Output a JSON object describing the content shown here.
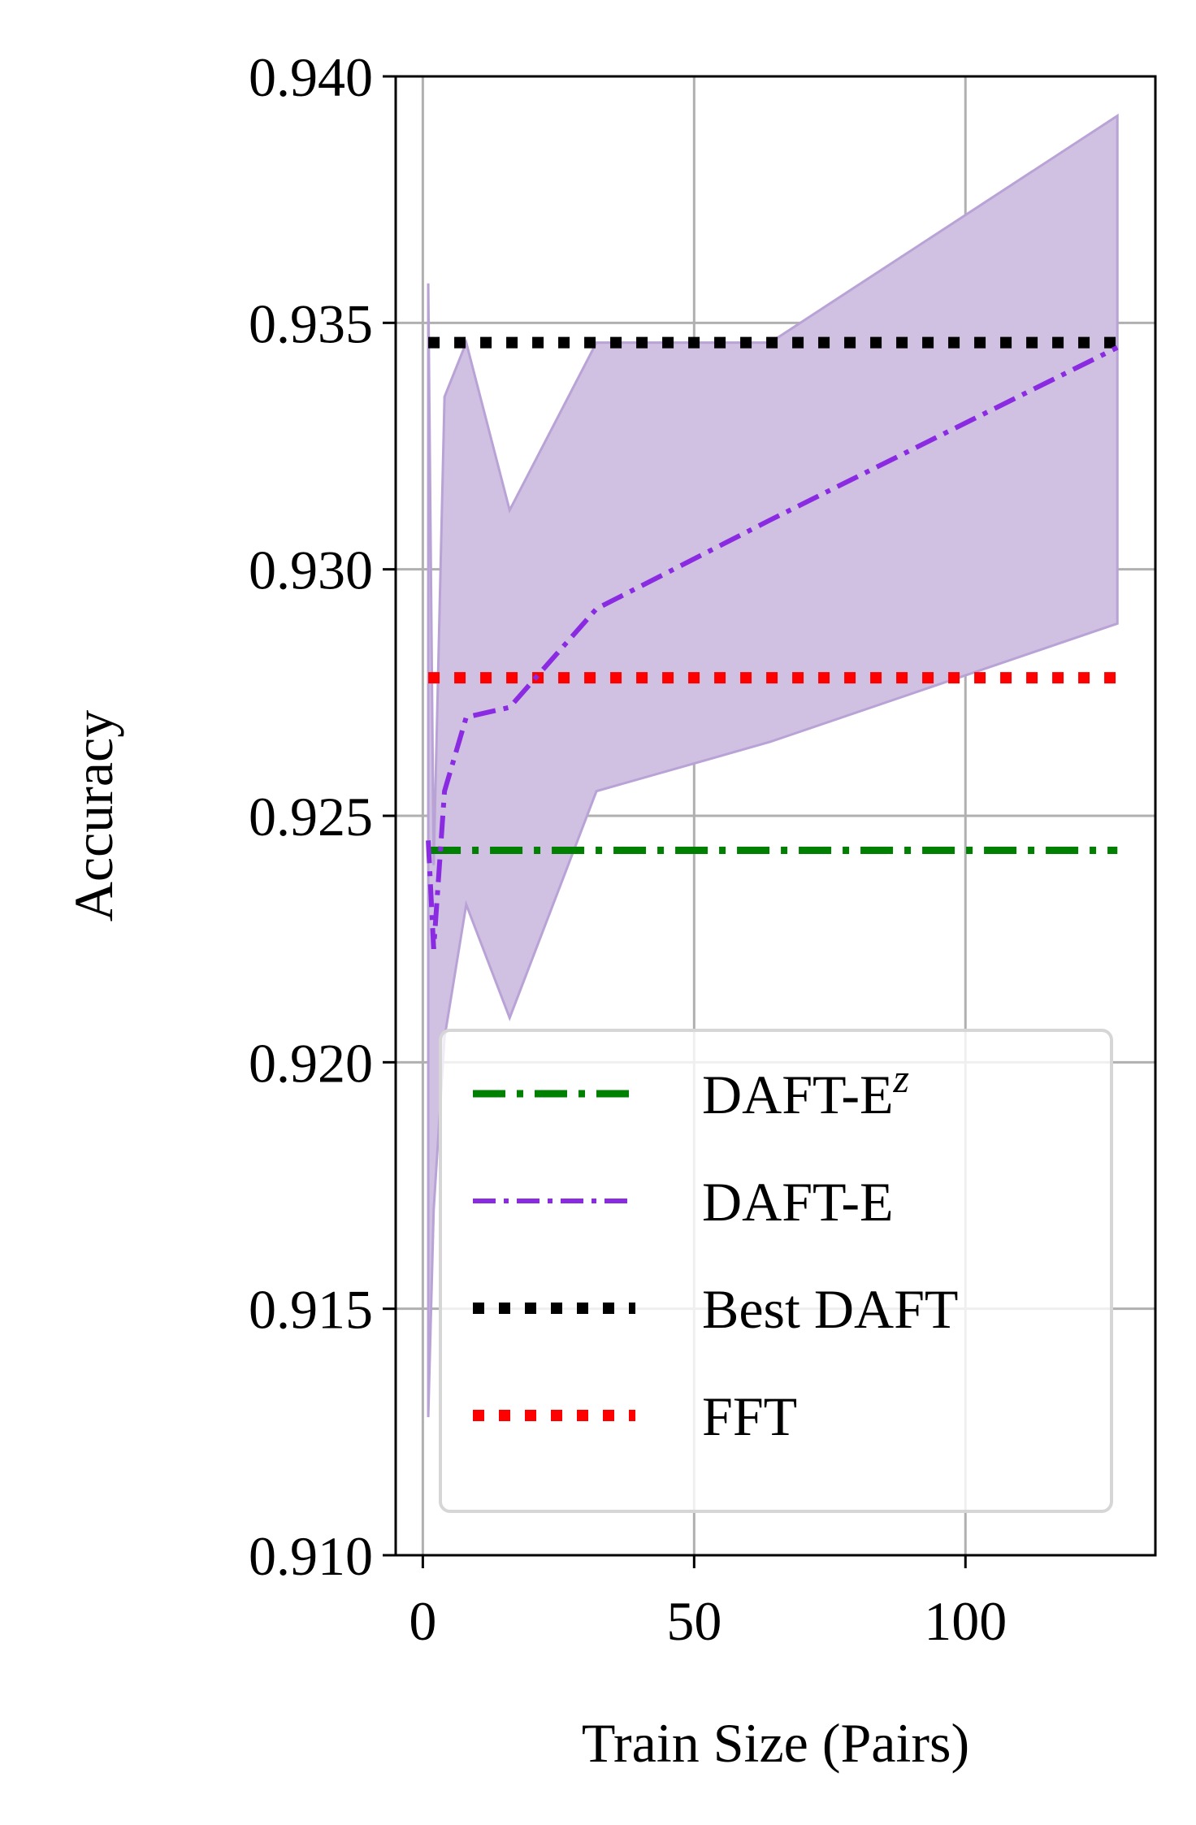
{
  "chart_data": {
    "type": "line",
    "xlabel": "Train Size (Pairs)",
    "ylabel": "Accuracy",
    "xlim": [
      -5,
      135
    ],
    "ylim": [
      0.91,
      0.94
    ],
    "xticks": [
      0,
      50,
      100
    ],
    "xtick_labels": [
      "0",
      "50",
      "100"
    ],
    "yticks": [
      0.91,
      0.915,
      0.92,
      0.925,
      0.93,
      0.935,
      0.94
    ],
    "ytick_labels": [
      "0.910",
      "0.915",
      "0.920",
      "0.925",
      "0.930",
      "0.935",
      "0.940"
    ],
    "grid": true,
    "legend_position": "lower-right",
    "series": [
      {
        "name": "DAFT-E",
        "name_sup": "z",
        "color": "#008000",
        "style": "dashdot-long",
        "x": [
          1,
          128
        ],
        "y": [
          0.9243,
          0.9243
        ]
      },
      {
        "name": "DAFT-E",
        "color": "#8a2be2",
        "style": "dashdot",
        "x": [
          1,
          2,
          4,
          8,
          16,
          32,
          64,
          128
        ],
        "y": [
          0.9245,
          0.9223,
          0.9255,
          0.927,
          0.9272,
          0.9292,
          0.931,
          0.9345
        ],
        "band_upper": [
          0.9358,
          0.924,
          0.9335,
          0.9346,
          0.9312,
          0.9346,
          0.9346,
          0.9392
        ],
        "band_lower": [
          0.9128,
          0.917,
          0.9205,
          0.9232,
          0.9209,
          0.9255,
          0.9265,
          0.9289
        ],
        "band_color": "#d0c0e2"
      },
      {
        "name": "Best DAFT",
        "color": "#000000",
        "style": "dotted",
        "x": [
          1,
          128
        ],
        "y": [
          0.9346,
          0.9346
        ]
      },
      {
        "name": "FFT",
        "color": "#ff0000",
        "style": "dotted",
        "x": [
          1,
          128
        ],
        "y": [
          0.9278,
          0.9278
        ]
      }
    ]
  }
}
